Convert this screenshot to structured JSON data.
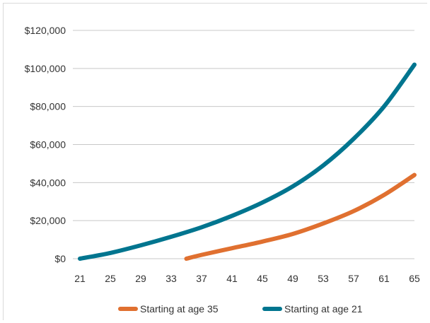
{
  "chart_data": {
    "type": "line",
    "title": "",
    "xlabel": "",
    "ylabel": "",
    "x_ticks": [
      "21",
      "25",
      "29",
      "33",
      "37",
      "41",
      "45",
      "49",
      "53",
      "57",
      "61",
      "65"
    ],
    "y_ticks": [
      "$0",
      "$20,000",
      "$40,000",
      "$60,000",
      "$80,000",
      "$100,000",
      "$120,000"
    ],
    "xlim": [
      21,
      65
    ],
    "ylim": [
      0,
      120000
    ],
    "grid": "horizontal",
    "legend": "bottom",
    "series": [
      {
        "name": "Starting at age 35",
        "color": "#e07030",
        "x": [
          35,
          37,
          41,
          45,
          49,
          53,
          57,
          61,
          65
        ],
        "y": [
          0,
          2000,
          5500,
          9000,
          13000,
          18500,
          25000,
          33500,
          44000
        ]
      },
      {
        "name": "Starting at age 21",
        "color": "#00758f",
        "x": [
          21,
          25,
          29,
          33,
          37,
          41,
          45,
          49,
          53,
          57,
          61,
          65
        ],
        "y": [
          0,
          3000,
          7000,
          11500,
          16500,
          22500,
          29500,
          38000,
          49000,
          63000,
          80000,
          102000
        ]
      }
    ]
  }
}
